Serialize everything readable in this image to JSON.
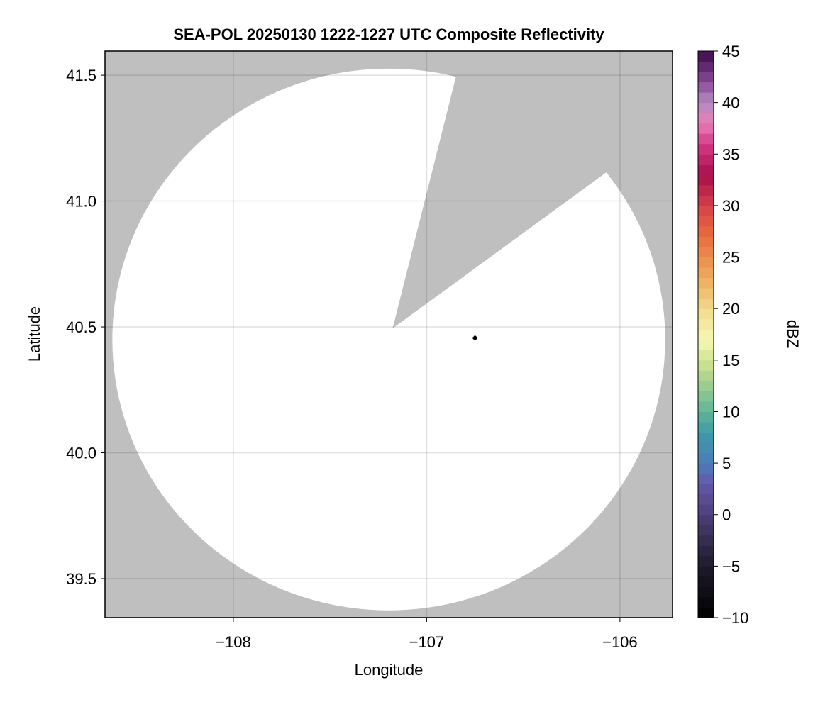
{
  "chart_data": {
    "type": "heatmap",
    "title": "SEA-POL 20250130 1222-1227 UTC Composite Reflectivity",
    "xlabel": "Longitude",
    "ylabel": "Latitude",
    "xlim": [
      -108.664,
      -105.728
    ],
    "ylim": [
      39.345,
      41.596
    ],
    "xticks": [
      -108,
      -107,
      -106
    ],
    "xtick_labels": [
      "−108",
      "−107",
      "−106"
    ],
    "yticks": [
      39.5,
      40.0,
      40.5,
      41.0,
      41.5
    ],
    "ytick_labels": [
      "39.5",
      "40.0",
      "40.5",
      "41.0",
      "41.5"
    ],
    "grid": true,
    "background_color": "#bfbfbf",
    "coverage_fill_color": "#ffffff",
    "coverage_region": {
      "center_lon": -107.196,
      "center_lat": 40.45,
      "radius_lon": 1.43,
      "radius_lat": 1.076
    },
    "blocked_sector": {
      "apex": [
        -107.176,
        40.494
      ],
      "edge1": [
        -106.84,
        41.52
      ],
      "edge2": [
        -106.06,
        41.12
      ]
    },
    "marker": {
      "lon": -106.75,
      "lat": 40.456,
      "shape": "diamond",
      "color": "#000000"
    },
    "values": [],
    "colorbar": {
      "label": "dBZ",
      "range": [
        -10,
        45
      ],
      "bin_width": 1,
      "ticks": [
        -10,
        -5,
        0,
        5,
        10,
        15,
        20,
        25,
        30,
        35,
        40,
        45
      ],
      "tick_labels": [
        "−10",
        "−5",
        "0",
        "5",
        "10",
        "15",
        "20",
        "25",
        "30",
        "35",
        "40",
        "45"
      ],
      "color_stops": [
        [
          -10,
          "#000000"
        ],
        [
          -5,
          "#1e1a2a"
        ],
        [
          0,
          "#4e3f7a"
        ],
        [
          3,
          "#6458a8"
        ],
        [
          5,
          "#4a7dba"
        ],
        [
          8,
          "#3f9aa8"
        ],
        [
          10,
          "#62b597"
        ],
        [
          13,
          "#a6d08f"
        ],
        [
          15,
          "#d2e58e"
        ],
        [
          17,
          "#f6f9b6"
        ],
        [
          20,
          "#f2d98a"
        ],
        [
          23,
          "#eeab5e"
        ],
        [
          27,
          "#e96d3e"
        ],
        [
          30,
          "#d4404a"
        ],
        [
          33,
          "#a60f4a"
        ],
        [
          36,
          "#d43a86"
        ],
        [
          38,
          "#e87fb6"
        ],
        [
          40,
          "#b38bc0"
        ],
        [
          42,
          "#8a4a9a"
        ],
        [
          45,
          "#3d0a48"
        ]
      ]
    }
  }
}
